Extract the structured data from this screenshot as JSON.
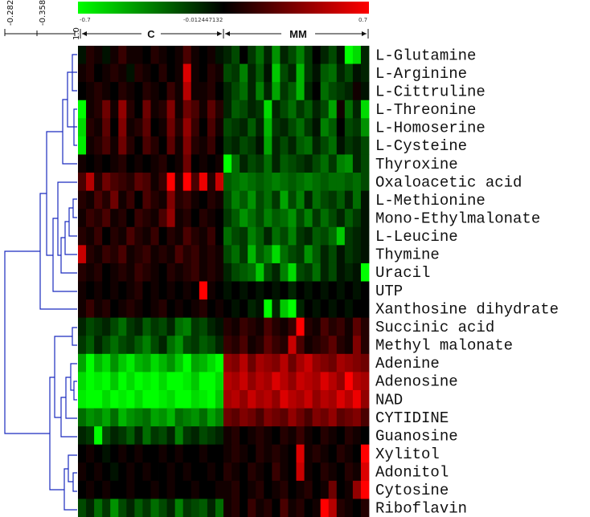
{
  "chart_data": {
    "type": "heatmap",
    "title": "",
    "color_scale": {
      "min": -0.7,
      "mid": -0.012447132,
      "max": 0.7,
      "min_label": "-0.7",
      "mid_label": "-0.012447132",
      "max_label": "0.7",
      "low_color": "#00ff00",
      "mid_color": "#000000",
      "high_color": "#ff0000"
    },
    "tree_scale": {
      "ticks": [
        "-0.282",
        "-0.3589",
        "1.0"
      ]
    },
    "groups": [
      {
        "label": "C",
        "n_columns": 18
      },
      {
        "label": "MM",
        "n_columns": 18
      }
    ],
    "rows": [
      "L-Glutamine",
      "L-Arginine",
      "L-Cittruline",
      "L-Threonine",
      "L-Homoserine",
      "L-Cysteine",
      "Thyroxine",
      "Oxaloacetic acid",
      "L-Methionine",
      "Mono-Ethylmalonate",
      "L-Leucine",
      "Thymine",
      "Uracil",
      "UTP",
      "Xanthosine dihydrate",
      "Succinic acid",
      "Methyl malonate",
      "Adenine",
      "Adenosine",
      "NAD",
      "CYTIDINE",
      "Guanosine",
      "Xylitol",
      "Adonitol",
      "Cytosine",
      "Riboflavin"
    ],
    "values": [
      [
        -0.05,
        0.1,
        0.05,
        -0.05,
        0.05,
        0.15,
        0.05,
        0.05,
        0.0,
        0.1,
        0.05,
        0.0,
        0.05,
        0.2,
        0.05,
        0.0,
        0.05,
        -0.05,
        -0.1,
        -0.2,
        0.0,
        -0.15,
        -0.3,
        -0.1,
        -0.4,
        -0.1,
        -0.2,
        -0.35,
        -0.15,
        0.0,
        -0.1,
        -0.2,
        -0.05,
        -0.7,
        -0.6,
        -0.1
      ],
      [
        0.05,
        0.1,
        0.0,
        0.05,
        0.1,
        0.05,
        -0.05,
        0.1,
        0.05,
        0.0,
        0.1,
        0.0,
        0.05,
        0.6,
        0.05,
        0.0,
        0.1,
        0.05,
        -0.2,
        -0.15,
        -0.35,
        -0.1,
        -0.25,
        -0.05,
        -0.55,
        -0.2,
        -0.1,
        -0.5,
        -0.15,
        -0.05,
        -0.25,
        -0.3,
        -0.1,
        -0.2,
        -0.05,
        -0.1
      ],
      [
        0.0,
        0.05,
        0.1,
        0.05,
        0.0,
        0.1,
        0.05,
        0.0,
        0.1,
        0.05,
        0.0,
        0.15,
        0.05,
        0.5,
        0.05,
        0.05,
        0.1,
        0.0,
        -0.1,
        -0.2,
        -0.3,
        -0.1,
        -0.35,
        -0.1,
        -0.45,
        -0.15,
        -0.25,
        -0.5,
        -0.1,
        0.0,
        -0.3,
        -0.2,
        -0.15,
        -0.1,
        0.05,
        -0.05
      ],
      [
        -0.7,
        0.05,
        0.1,
        0.3,
        0.05,
        0.4,
        0.1,
        0.0,
        0.3,
        0.05,
        0.1,
        0.35,
        0.05,
        0.3,
        0.2,
        0.05,
        0.25,
        0.1,
        -0.1,
        -0.25,
        -0.2,
        -0.1,
        -0.15,
        -0.6,
        -0.1,
        -0.2,
        -0.3,
        -0.15,
        -0.25,
        -0.1,
        -0.2,
        -0.45,
        0.05,
        -0.3,
        -0.1,
        -0.6
      ],
      [
        -0.6,
        0.1,
        0.05,
        0.25,
        0.0,
        0.35,
        0.05,
        0.1,
        0.25,
        0.0,
        0.05,
        0.3,
        0.1,
        0.4,
        0.15,
        0.0,
        0.2,
        0.05,
        -0.2,
        -0.15,
        -0.1,
        -0.25,
        -0.1,
        -0.5,
        -0.15,
        -0.1,
        -0.2,
        -0.3,
        -0.15,
        -0.05,
        -0.35,
        -0.25,
        0.0,
        -0.2,
        -0.15,
        -0.4
      ],
      [
        -0.65,
        0.05,
        0.1,
        0.2,
        0.05,
        0.3,
        0.1,
        0.0,
        0.2,
        0.1,
        0.0,
        0.25,
        0.05,
        0.35,
        0.1,
        0.05,
        0.15,
        0.0,
        -0.15,
        -0.1,
        -0.2,
        -0.15,
        -0.05,
        -0.45,
        -0.1,
        -0.2,
        -0.1,
        -0.25,
        -0.3,
        -0.1,
        -0.2,
        -0.3,
        -0.05,
        -0.15,
        -0.1,
        -0.2
      ],
      [
        0.05,
        0.0,
        0.05,
        0.0,
        0.05,
        0.1,
        0.0,
        0.05,
        0.0,
        0.05,
        0.1,
        0.0,
        0.05,
        0.3,
        0.0,
        0.05,
        0.0,
        0.05,
        -0.7,
        -0.3,
        -0.1,
        -0.2,
        -0.15,
        -0.3,
        -0.1,
        -0.25,
        -0.2,
        -0.15,
        -0.1,
        -0.2,
        -0.3,
        -0.15,
        -0.35,
        -0.4,
        -0.1,
        -0.2
      ],
      [
        0.2,
        0.5,
        0.1,
        0.3,
        0.2,
        0.15,
        0.1,
        0.25,
        0.2,
        0.05,
        0.15,
        0.7,
        0.1,
        0.8,
        0.2,
        0.65,
        0.1,
        0.55,
        -0.25,
        -0.3,
        -0.35,
        -0.3,
        -0.25,
        -0.3,
        -0.35,
        -0.3,
        -0.25,
        -0.3,
        -0.35,
        -0.3,
        -0.25,
        -0.3,
        -0.3,
        -0.25,
        -0.3,
        -0.2
      ],
      [
        0.1,
        0.05,
        0.2,
        0.1,
        0.3,
        0.05,
        0.15,
        0.0,
        0.2,
        0.1,
        0.05,
        0.35,
        0.1,
        0.15,
        0.05,
        0.0,
        0.1,
        0.05,
        -0.2,
        -0.35,
        -0.25,
        -0.4,
        -0.2,
        -0.3,
        -0.15,
        -0.45,
        -0.2,
        -0.35,
        -0.1,
        -0.3,
        -0.2,
        -0.15,
        -0.25,
        -0.1,
        -0.3,
        -0.05
      ],
      [
        0.05,
        0.15,
        0.1,
        0.2,
        0.05,
        0.1,
        0.0,
        0.15,
        0.1,
        0.05,
        0.2,
        0.4,
        0.05,
        0.1,
        0.0,
        0.1,
        0.05,
        0.0,
        -0.15,
        -0.25,
        -0.4,
        -0.3,
        -0.2,
        -0.35,
        -0.25,
        -0.3,
        -0.4,
        -0.2,
        -0.35,
        -0.15,
        -0.3,
        -0.2,
        -0.1,
        -0.25,
        -0.15,
        -0.05
      ],
      [
        0.1,
        0.05,
        0.15,
        0.0,
        0.1,
        0.05,
        0.2,
        0.1,
        0.05,
        0.15,
        0.0,
        0.1,
        0.05,
        0.2,
        0.1,
        0.05,
        0.15,
        0.0,
        -0.3,
        -0.2,
        -0.15,
        -0.35,
        -0.25,
        -0.1,
        -0.3,
        -0.2,
        -0.35,
        -0.15,
        -0.1,
        -0.25,
        -0.2,
        -0.3,
        -0.55,
        -0.15,
        -0.1,
        -0.05
      ],
      [
        0.55,
        0.1,
        0.05,
        0.15,
        0.1,
        0.2,
        0.05,
        0.1,
        0.15,
        0.05,
        0.1,
        0.05,
        0.2,
        0.1,
        0.15,
        0.05,
        0.1,
        0.05,
        -0.2,
        -0.3,
        -0.15,
        -0.5,
        -0.25,
        -0.35,
        -0.6,
        -0.3,
        -0.2,
        -0.15,
        -0.4,
        -0.25,
        -0.1,
        -0.2,
        -0.05,
        -0.15,
        -0.1,
        -0.05
      ],
      [
        0.1,
        0.05,
        0.1,
        0.0,
        0.05,
        0.1,
        0.05,
        0.15,
        0.1,
        0.05,
        0.0,
        0.1,
        0.05,
        0.1,
        0.15,
        0.05,
        0.1,
        0.05,
        -0.1,
        -0.2,
        -0.25,
        -0.3,
        -0.55,
        -0.2,
        -0.1,
        -0.35,
        -0.6,
        -0.2,
        -0.15,
        -0.3,
        -0.1,
        -0.2,
        -0.05,
        -0.1,
        -0.05,
        -0.7
      ],
      [
        0.05,
        0.0,
        0.05,
        0.0,
        0.05,
        0.0,
        0.05,
        0.1,
        0.0,
        0.05,
        0.0,
        0.05,
        0.0,
        0.05,
        0.0,
        0.75,
        0.05,
        0.0,
        -0.05,
        0.0,
        -0.05,
        0.0,
        -0.05,
        0.0,
        -0.05,
        0.0,
        -0.1,
        0.0,
        -0.05,
        0.0,
        -0.05,
        0.0,
        -0.05,
        0.0,
        -0.05,
        0.0
      ],
      [
        0.05,
        0.15,
        0.05,
        0.1,
        0.0,
        0.05,
        0.1,
        0.05,
        0.0,
        0.05,
        0.1,
        0.0,
        0.05,
        0.0,
        0.05,
        0.1,
        0.0,
        0.05,
        0.0,
        -0.05,
        0.0,
        -0.1,
        -0.05,
        -0.7,
        -0.1,
        -0.55,
        -0.7,
        -0.1,
        0.0,
        -0.05,
        0.0,
        -0.05,
        0.0,
        -0.05,
        0.0,
        0.0
      ],
      [
        -0.1,
        -0.2,
        -0.15,
        -0.1,
        -0.2,
        -0.3,
        -0.15,
        -0.1,
        -0.25,
        -0.15,
        -0.2,
        -0.1,
        -0.3,
        -0.35,
        -0.15,
        -0.2,
        -0.1,
        -0.05,
        0.1,
        0.05,
        0.15,
        0.1,
        0.05,
        0.2,
        0.1,
        0.05,
        0.15,
        0.7,
        0.1,
        0.05,
        0.2,
        0.1,
        0.15,
        0.05,
        0.25,
        0.1
      ],
      [
        -0.15,
        -0.25,
        -0.1,
        -0.2,
        -0.3,
        -0.2,
        -0.15,
        -0.25,
        -0.35,
        -0.2,
        -0.1,
        -0.3,
        -0.4,
        -0.2,
        -0.15,
        -0.25,
        -0.2,
        -0.1,
        0.15,
        0.1,
        0.2,
        0.05,
        0.1,
        0.25,
        0.15,
        0.1,
        0.55,
        0.2,
        0.05,
        0.1,
        0.15,
        0.25,
        0.1,
        0.05,
        0.35,
        0.1
      ],
      [
        -0.45,
        -0.7,
        -0.5,
        -0.6,
        -0.4,
        -0.55,
        -0.65,
        -0.5,
        -0.45,
        -0.6,
        -0.5,
        -0.4,
        -0.55,
        -0.7,
        -0.45,
        -0.5,
        -0.6,
        -0.7,
        0.4,
        0.35,
        0.5,
        0.3,
        0.45,
        0.4,
        0.35,
        0.5,
        0.3,
        0.45,
        0.55,
        0.4,
        0.35,
        0.3,
        0.45,
        0.4,
        0.35,
        0.3
      ],
      [
        -0.6,
        -0.75,
        -0.65,
        -0.7,
        -0.55,
        -0.8,
        -0.6,
        -0.7,
        -0.65,
        -0.75,
        -0.6,
        -0.7,
        -0.8,
        -0.65,
        -0.55,
        -0.7,
        -0.75,
        -0.6,
        0.5,
        0.45,
        0.55,
        0.4,
        0.5,
        0.45,
        0.6,
        0.5,
        0.4,
        0.55,
        0.5,
        0.45,
        0.6,
        0.5,
        0.4,
        0.7,
        0.5,
        0.45
      ],
      [
        -0.65,
        -0.7,
        -0.75,
        -0.6,
        -0.7,
        -0.65,
        -0.8,
        -0.6,
        -0.7,
        -0.75,
        -0.65,
        -0.6,
        -0.7,
        -0.8,
        -0.6,
        -0.65,
        -0.7,
        -0.55,
        0.45,
        0.5,
        0.4,
        0.55,
        0.45,
        0.5,
        0.4,
        0.6,
        0.5,
        0.45,
        0.55,
        0.4,
        0.5,
        0.45,
        0.6,
        0.5,
        0.65,
        0.4
      ],
      [
        -0.3,
        -0.4,
        -0.35,
        -0.45,
        -0.3,
        -0.5,
        -0.4,
        -0.35,
        -0.3,
        -0.45,
        -0.4,
        -0.5,
        -0.3,
        -0.35,
        -0.4,
        -0.3,
        -0.45,
        -0.35,
        0.3,
        0.25,
        0.35,
        0.3,
        0.2,
        0.35,
        0.3,
        0.25,
        0.4,
        0.3,
        0.2,
        0.35,
        0.3,
        0.4,
        0.25,
        0.3,
        0.35,
        0.2
      ],
      [
        -0.1,
        -0.15,
        -0.7,
        -0.2,
        -0.1,
        -0.15,
        -0.25,
        -0.1,
        -0.3,
        -0.15,
        -0.2,
        -0.1,
        -0.35,
        -0.15,
        -0.1,
        -0.2,
        -0.15,
        -0.1,
        0.05,
        0.1,
        0.0,
        0.05,
        0.1,
        0.05,
        0.0,
        0.1,
        0.05,
        0.15,
        0.05,
        0.0,
        0.1,
        0.05,
        0.0,
        0.1,
        0.05,
        0.0
      ],
      [
        0.0,
        0.05,
        0.0,
        -0.05,
        0.0,
        0.05,
        0.0,
        0.05,
        0.0,
        0.0,
        0.05,
        0.0,
        0.05,
        0.0,
        0.0,
        0.05,
        0.0,
        0.0,
        0.05,
        0.1,
        0.05,
        0.0,
        0.1,
        0.05,
        0.1,
        0.05,
        0.0,
        0.6,
        0.05,
        0.1,
        0.05,
        0.0,
        0.1,
        0.05,
        0.0,
        0.7
      ],
      [
        0.05,
        0.0,
        0.05,
        0.0,
        -0.05,
        0.0,
        0.05,
        0.0,
        0.05,
        0.0,
        0.0,
        0.05,
        0.0,
        0.05,
        0.0,
        0.0,
        0.05,
        0.0,
        0.1,
        0.05,
        0.0,
        0.1,
        0.05,
        0.0,
        0.15,
        0.05,
        0.0,
        0.55,
        0.05,
        0.0,
        0.1,
        0.05,
        0.0,
        0.1,
        0.05,
        0.6
      ],
      [
        0.0,
        0.05,
        0.0,
        0.05,
        0.0,
        0.0,
        0.05,
        0.0,
        0.0,
        0.05,
        0.0,
        0.05,
        0.0,
        0.0,
        0.05,
        0.0,
        0.0,
        0.05,
        0.05,
        0.1,
        0.0,
        0.05,
        0.1,
        0.0,
        0.05,
        0.1,
        0.0,
        0.05,
        0.1,
        0.0,
        0.05,
        0.3,
        0.0,
        0.05,
        0.4,
        0.7
      ],
      [
        -0.2,
        -0.1,
        -0.3,
        -0.15,
        -0.4,
        -0.2,
        -0.1,
        -0.25,
        -0.15,
        -0.3,
        -0.2,
        -0.1,
        -0.35,
        -0.15,
        -0.2,
        -0.25,
        -0.1,
        -0.3,
        0.05,
        0.1,
        0.0,
        0.15,
        0.05,
        0.1,
        0.0,
        0.2,
        0.05,
        0.1,
        0.0,
        0.05,
        0.7,
        0.5,
        0.1,
        0.05,
        0.0,
        0.1
      ]
    ]
  }
}
